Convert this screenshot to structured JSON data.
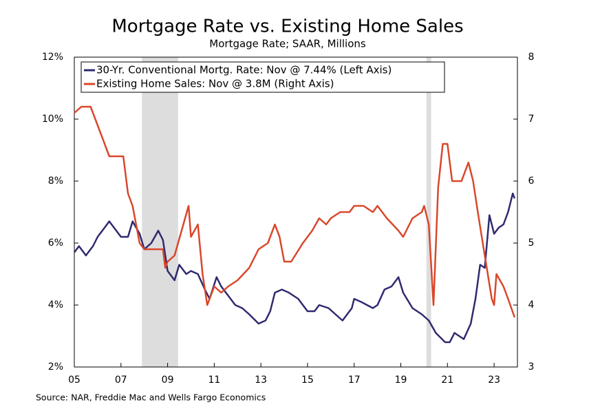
{
  "chart_data": {
    "type": "line",
    "title": "Mortgage Rate vs. Existing Home Sales",
    "subtitle": "Mortgage Rate; SAAR, Millions",
    "source": "Source: NAR, Freddie Mac and Wells Fargo Economics",
    "xlim": [
      2005,
      2024
    ],
    "xticks": [
      {
        "value": 2005,
        "label": "05"
      },
      {
        "value": 2007,
        "label": "07"
      },
      {
        "value": 2009,
        "label": "09"
      },
      {
        "value": 2011,
        "label": "11"
      },
      {
        "value": 2013,
        "label": "13"
      },
      {
        "value": 2015,
        "label": "15"
      },
      {
        "value": 2017,
        "label": "17"
      },
      {
        "value": 2019,
        "label": "19"
      },
      {
        "value": 2021,
        "label": "21"
      },
      {
        "value": 2023,
        "label": "23"
      }
    ],
    "ylim": [
      2,
      12
    ],
    "yticks": [
      {
        "value": 2,
        "label": "2%"
      },
      {
        "value": 4,
        "label": "4%"
      },
      {
        "value": 6,
        "label": "6%"
      },
      {
        "value": 8,
        "label": "8%"
      },
      {
        "value": 10,
        "label": "10%"
      },
      {
        "value": 12,
        "label": "12%"
      }
    ],
    "y2lim": [
      3,
      8
    ],
    "y2ticks": [
      3,
      4,
      5,
      6,
      7,
      8
    ],
    "recessions": [
      [
        2007.9,
        2009.45
      ],
      [
        2020.1,
        2020.3
      ]
    ],
    "recession_color": "#dddddd",
    "legend": "upper left",
    "series": [
      {
        "name": "30-Yr. Conventional Mortg. Rate: Nov @ 7.44% (Left Axis)",
        "color": "#2e2a6e",
        "axis": "y",
        "x": [
          2005.0,
          2005.2,
          2005.5,
          2005.8,
          2006.0,
          2006.3,
          2006.5,
          2006.8,
          2007.0,
          2007.3,
          2007.5,
          2007.8,
          2008.0,
          2008.3,
          2008.6,
          2008.8,
          2009.0,
          2009.3,
          2009.5,
          2009.8,
          2010.0,
          2010.3,
          2010.6,
          2010.8,
          2011.1,
          2011.3,
          2011.6,
          2011.9,
          2012.2,
          2012.5,
          2012.9,
          2013.2,
          2013.4,
          2013.6,
          2013.9,
          2014.2,
          2014.6,
          2015.0,
          2015.3,
          2015.5,
          2015.9,
          2016.2,
          2016.5,
          2016.9,
          2017.0,
          2017.3,
          2017.8,
          2018.0,
          2018.3,
          2018.6,
          2018.9,
          2019.1,
          2019.5,
          2019.9,
          2020.2,
          2020.5,
          2020.9,
          2021.1,
          2021.3,
          2021.7,
          2022.0,
          2022.2,
          2022.4,
          2022.6,
          2022.8,
          2023.0,
          2023.2,
          2023.4,
          2023.6,
          2023.8,
          2023.88
        ],
        "values": [
          5.7,
          5.9,
          5.6,
          5.9,
          6.2,
          6.5,
          6.7,
          6.4,
          6.2,
          6.2,
          6.7,
          6.3,
          5.8,
          6.0,
          6.4,
          6.1,
          5.1,
          4.8,
          5.3,
          5.0,
          5.1,
          5.0,
          4.5,
          4.2,
          4.9,
          4.6,
          4.3,
          4.0,
          3.9,
          3.7,
          3.4,
          3.5,
          3.8,
          4.4,
          4.5,
          4.4,
          4.2,
          3.8,
          3.8,
          4.0,
          3.9,
          3.7,
          3.5,
          3.9,
          4.2,
          4.1,
          3.9,
          4.0,
          4.5,
          4.6,
          4.9,
          4.4,
          3.9,
          3.7,
          3.5,
          3.1,
          2.8,
          2.8,
          3.1,
          2.9,
          3.4,
          4.2,
          5.3,
          5.2,
          6.9,
          6.3,
          6.5,
          6.6,
          7.0,
          7.6,
          7.44
        ]
      },
      {
        "name": "Existing Home Sales: Nov @ 3.8M (Right Axis)",
        "color": "#d9472b",
        "axis": "y2",
        "x": [
          2005.0,
          2005.3,
          2005.7,
          2005.9,
          2006.2,
          2006.5,
          2006.8,
          2007.0,
          2007.1,
          2007.3,
          2007.5,
          2007.8,
          2008.0,
          2008.2,
          2008.5,
          2008.8,
          2008.9,
          2009.0,
          2009.3,
          2009.6,
          2009.9,
          2010.0,
          2010.3,
          2010.5,
          2010.7,
          2011.0,
          2011.3,
          2011.6,
          2012.0,
          2012.5,
          2012.9,
          2013.3,
          2013.6,
          2013.8,
          2014.0,
          2014.3,
          2014.8,
          2015.2,
          2015.5,
          2015.8,
          2016.0,
          2016.4,
          2016.8,
          2017.0,
          2017.4,
          2017.8,
          2018.0,
          2018.4,
          2018.9,
          2019.1,
          2019.5,
          2019.9,
          2020.0,
          2020.2,
          2020.4,
          2020.6,
          2020.8,
          2021.0,
          2021.2,
          2021.6,
          2021.9,
          2022.1,
          2022.3,
          2022.6,
          2022.9,
          2023.0,
          2023.1,
          2023.4,
          2023.6,
          2023.88
        ],
        "values": [
          7.1,
          7.2,
          7.2,
          7.0,
          6.7,
          6.4,
          6.4,
          6.4,
          6.4,
          5.8,
          5.6,
          5.0,
          4.9,
          4.9,
          4.9,
          4.9,
          4.6,
          4.7,
          4.8,
          5.2,
          5.6,
          5.1,
          5.3,
          4.5,
          4.0,
          4.3,
          4.2,
          4.3,
          4.4,
          4.6,
          4.9,
          5.0,
          5.3,
          5.1,
          4.7,
          4.7,
          5.0,
          5.2,
          5.4,
          5.3,
          5.4,
          5.5,
          5.5,
          5.6,
          5.6,
          5.5,
          5.6,
          5.4,
          5.2,
          5.1,
          5.4,
          5.5,
          5.6,
          5.3,
          4.0,
          5.9,
          6.6,
          6.6,
          6.0,
          6.0,
          6.3,
          6.0,
          5.5,
          4.8,
          4.1,
          4.0,
          4.5,
          4.3,
          4.1,
          3.8
        ]
      }
    ]
  }
}
